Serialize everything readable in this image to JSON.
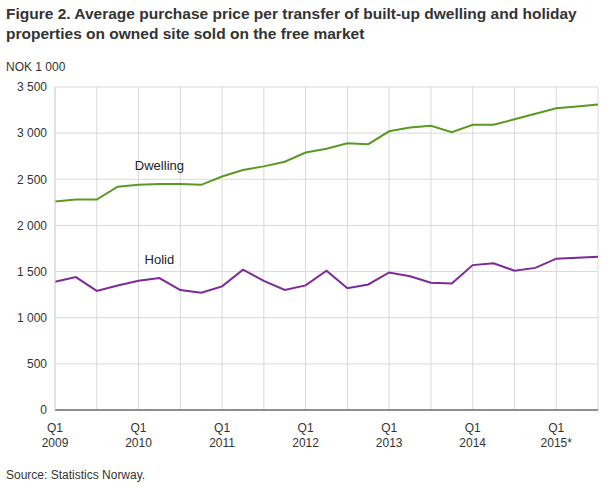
{
  "chart_data": {
    "type": "line",
    "title": "Figure 2. Average purchase price per transfer of built-up dwelling and holiday properties on owned site sold on the free market",
    "y_label": "NOK 1 000",
    "source": "Source: Statistics Norway.",
    "categories": [
      "Q1\n2009",
      null,
      null,
      null,
      "Q1\n2010",
      null,
      null,
      null,
      "Q1\n2011",
      null,
      null,
      null,
      "Q1\n2012",
      null,
      null,
      null,
      "Q1\n2013",
      null,
      null,
      null,
      "Q1\n2014",
      null,
      null,
      null,
      "Q1\n2015*",
      null,
      null
    ],
    "series": [
      {
        "name": "Dwelling",
        "color": "#5a9a22",
        "values": [
          2260,
          2280,
          2280,
          2420,
          2440,
          2450,
          2450,
          2440,
          2530,
          2600,
          2640,
          2690,
          2790,
          2830,
          2890,
          2880,
          3020,
          3060,
          3080,
          3010,
          3090,
          3090,
          3150,
          3210,
          3270,
          3290,
          3310
        ]
      },
      {
        "name": "Holid",
        "color": "#7b2a98",
        "values": [
          1390,
          1440,
          1290,
          1350,
          1400,
          1430,
          1300,
          1270,
          1340,
          1520,
          1400,
          1300,
          1350,
          1510,
          1320,
          1360,
          1490,
          1450,
          1380,
          1370,
          1570,
          1590,
          1510,
          1540,
          1640,
          1650,
          1660
        ]
      }
    ],
    "ylim": [
      0,
      3500
    ],
    "yticks": [
      0,
      500,
      {
        "value": 1000,
        "label": "1 000"
      },
      {
        "value": 1500,
        "label": "1 500"
      },
      {
        "value": 2000,
        "label": "2 000"
      },
      {
        "value": 2500,
        "label": "2 500"
      },
      {
        "value": 3000,
        "label": "3 000"
      },
      {
        "value": 3500,
        "label": "3 500"
      }
    ],
    "grid": true
  }
}
